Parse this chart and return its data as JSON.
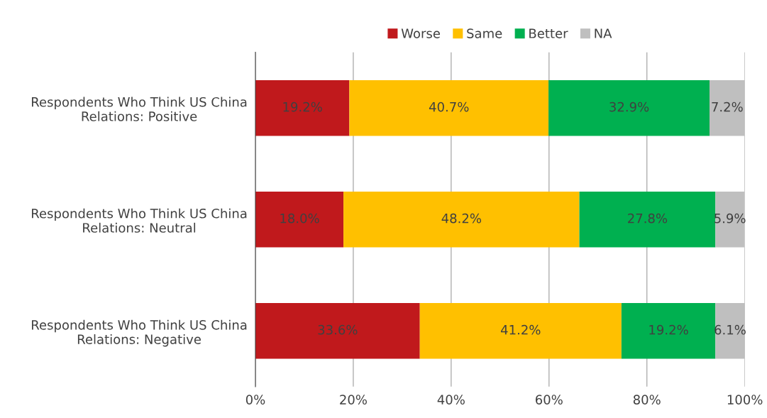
{
  "chart_data": {
    "type": "bar",
    "orientation": "horizontal",
    "stacked": true,
    "categories": [
      "Respondents Who Think US China\nRelations: Positive",
      "Respondents Who Think US China\nRelations: Neutral",
      "Respondents Who Think US China\nRelations: Negative"
    ],
    "series": [
      {
        "name": "Worse",
        "color": "#c0191c",
        "values": [
          19.2,
          18.0,
          33.6
        ],
        "value_labels": [
          "19.2%",
          "18.0%",
          "33.6%"
        ]
      },
      {
        "name": "Same",
        "color": "#ffc000",
        "values": [
          40.7,
          48.2,
          41.2
        ],
        "value_labels": [
          "40.7%",
          "48.2%",
          "41.2%"
        ]
      },
      {
        "name": "Better",
        "color": "#00b050",
        "values": [
          32.9,
          27.8,
          19.2
        ],
        "value_labels": [
          "32.9%",
          "27.8%",
          "19.2%"
        ]
      },
      {
        "name": "NA",
        "color": "#bfbfbf",
        "values": [
          7.2,
          5.9,
          6.1
        ],
        "value_labels": [
          "7.2%",
          "5.9%",
          "6.1%"
        ]
      }
    ],
    "xlim": [
      0,
      100
    ],
    "xticks": [
      {
        "value": 0,
        "label": "0%"
      },
      {
        "value": 20,
        "label": "20%"
      },
      {
        "value": 40,
        "label": "40%"
      },
      {
        "value": 60,
        "label": "60%"
      },
      {
        "value": 80,
        "label": "80%"
      },
      {
        "value": 100,
        "label": "100%"
      }
    ],
    "grid": "x",
    "legend": "top"
  }
}
